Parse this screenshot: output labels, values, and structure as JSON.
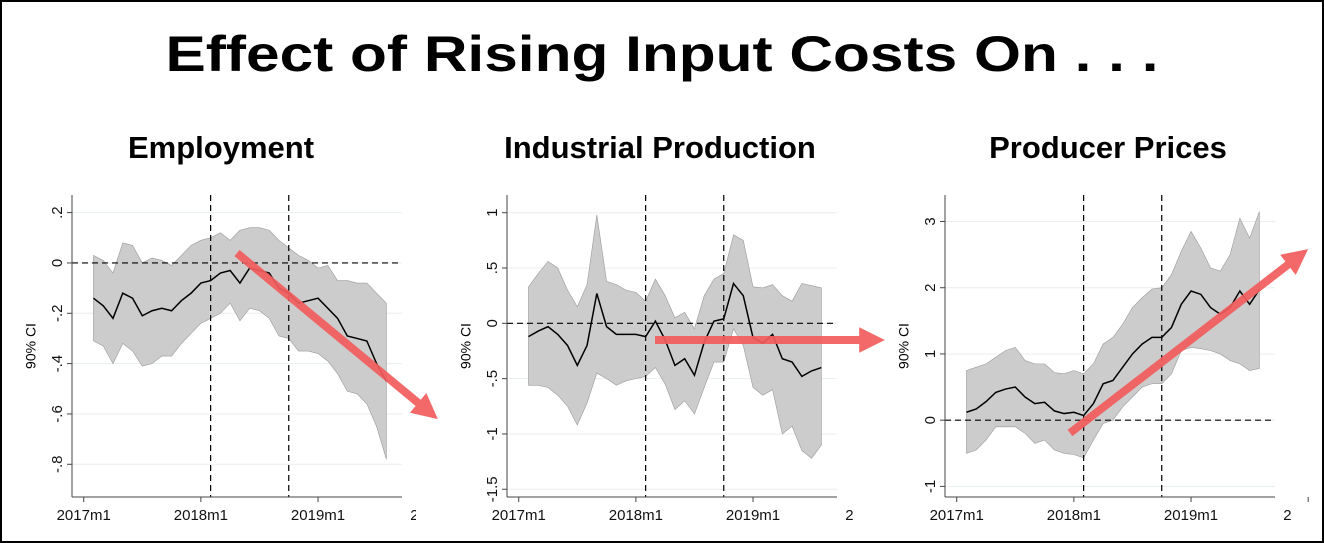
{
  "title": "Effect of Rising Input Costs On . . .",
  "chart_data": [
    {
      "type": "line",
      "title": "Employment",
      "y_label": "90% CI",
      "x": [
        1,
        2,
        3,
        4,
        5,
        6,
        7,
        8,
        9,
        10,
        11,
        12,
        13,
        14,
        15,
        16,
        17,
        18,
        19,
        20,
        21,
        22,
        23,
        24,
        25,
        26,
        27,
        28,
        29,
        30,
        31
      ],
      "values": [
        -0.14,
        -0.17,
        -0.22,
        -0.12,
        -0.14,
        -0.21,
        -0.19,
        -0.18,
        -0.19,
        -0.15,
        -0.12,
        -0.08,
        -0.07,
        -0.04,
        -0.03,
        -0.08,
        -0.02,
        -0.03,
        -0.04,
        -0.1,
        -0.12,
        -0.16,
        -0.15,
        -0.14,
        -0.18,
        -0.22,
        -0.29,
        -0.3,
        -0.31,
        -0.4,
        -0.47
      ],
      "upper": [
        0.03,
        0.01,
        -0.04,
        0.08,
        0.07,
        0.0,
        0.02,
        0.01,
        -0.01,
        0.03,
        0.07,
        0.09,
        0.1,
        0.12,
        0.09,
        0.13,
        0.14,
        0.14,
        0.13,
        0.09,
        0.06,
        0.03,
        0.01,
        -0.02,
        -0.01,
        -0.07,
        -0.07,
        -0.08,
        -0.08,
        -0.12,
        -0.16
      ],
      "lower": [
        -0.31,
        -0.33,
        -0.4,
        -0.32,
        -0.35,
        -0.41,
        -0.4,
        -0.37,
        -0.37,
        -0.32,
        -0.28,
        -0.24,
        -0.22,
        -0.2,
        -0.16,
        -0.23,
        -0.18,
        -0.19,
        -0.22,
        -0.29,
        -0.3,
        -0.35,
        -0.35,
        -0.36,
        -0.39,
        -0.44,
        -0.51,
        -0.52,
        -0.56,
        -0.65,
        -0.78
      ],
      "xlim": [
        -1.2,
        32.6
      ],
      "xticks": [
        {
          "value": 0,
          "label": "2017m1"
        },
        {
          "value": 12,
          "label": "2018m1"
        },
        {
          "value": 24,
          "label": "2019m1"
        },
        {
          "value": 36,
          "label": "2"
        }
      ],
      "ylim": [
        -0.93,
        0.27
      ],
      "yticks": [
        {
          "value": 0.2,
          "label": ".2"
        },
        0,
        {
          "value": -0.2,
          "label": "-.2"
        },
        {
          "value": -0.4,
          "label": "-.4"
        },
        {
          "value": -0.6,
          "label": "-.6"
        },
        {
          "value": -0.8,
          "label": "-.8"
        }
      ],
      "hline": 0,
      "vlines": [
        13,
        21
      ],
      "grid": true,
      "color": "#000000",
      "band_color": "#cccccc"
    },
    {
      "type": "line",
      "title": "Industrial Production",
      "y_label": "90% CI",
      "x": [
        1,
        2,
        3,
        4,
        5,
        6,
        7,
        8,
        9,
        10,
        11,
        12,
        13,
        14,
        15,
        16,
        17,
        18,
        19,
        20,
        21,
        22,
        23,
        24,
        25,
        26,
        27,
        28,
        29,
        30,
        31
      ],
      "values": [
        -0.12,
        -0.07,
        -0.03,
        -0.1,
        -0.2,
        -0.38,
        -0.2,
        0.27,
        -0.03,
        -0.1,
        -0.1,
        -0.1,
        -0.12,
        0.02,
        -0.15,
        -0.38,
        -0.32,
        -0.47,
        -0.17,
        0.02,
        0.04,
        0.36,
        0.25,
        -0.13,
        -0.18,
        -0.1,
        -0.32,
        -0.35,
        -0.48,
        -0.43,
        -0.4
      ],
      "upper": [
        0.33,
        0.45,
        0.56,
        0.5,
        0.3,
        0.15,
        0.35,
        0.98,
        0.38,
        0.35,
        0.3,
        0.28,
        0.2,
        0.4,
        0.25,
        0.05,
        0.1,
        -0.05,
        0.25,
        0.4,
        0.45,
        0.8,
        0.75,
        0.33,
        0.32,
        0.35,
        0.25,
        0.2,
        0.36,
        0.34,
        0.32
      ],
      "lower": [
        -0.56,
        -0.56,
        -0.58,
        -0.65,
        -0.75,
        -0.92,
        -0.72,
        -0.45,
        -0.5,
        -0.56,
        -0.52,
        -0.5,
        -0.48,
        -0.4,
        -0.55,
        -0.78,
        -0.7,
        -0.82,
        -0.58,
        -0.35,
        -0.35,
        -0.05,
        -0.2,
        -0.58,
        -0.65,
        -0.6,
        -1.0,
        -0.93,
        -1.15,
        -1.22,
        -1.1
      ],
      "xlim": [
        -1.2,
        32.6
      ],
      "xticks": [
        {
          "value": 0,
          "label": "2017m1"
        },
        {
          "value": 12,
          "label": "2018m1"
        },
        {
          "value": 24,
          "label": "2019m1"
        },
        {
          "value": 36,
          "label": "2"
        }
      ],
      "ylim": [
        -1.57,
        1.16
      ],
      "yticks": [
        1,
        {
          "value": 0.5,
          "label": ".5"
        },
        0,
        {
          "value": -0.5,
          "label": "-.5"
        },
        -1,
        -1.5
      ],
      "hline": 0,
      "vlines": [
        13,
        21
      ],
      "grid": true,
      "color": "#000000",
      "band_color": "#cccccc"
    },
    {
      "type": "line",
      "title": "Producer Prices",
      "y_label": "90% CI",
      "x": [
        1,
        2,
        3,
        4,
        5,
        6,
        7,
        8,
        9,
        10,
        11,
        12,
        13,
        14,
        15,
        16,
        17,
        18,
        19,
        20,
        21,
        22,
        23,
        24,
        25,
        26,
        27,
        28,
        29,
        30,
        31
      ],
      "values": [
        0.12,
        0.17,
        0.28,
        0.42,
        0.47,
        0.5,
        0.35,
        0.25,
        0.27,
        0.14,
        0.1,
        0.12,
        0.07,
        0.25,
        0.55,
        0.6,
        0.8,
        1.0,
        1.15,
        1.25,
        1.25,
        1.4,
        1.75,
        1.95,
        1.9,
        1.7,
        1.6,
        1.7,
        1.95,
        1.75,
        1.97
      ],
      "upper": [
        0.75,
        0.8,
        0.85,
        0.95,
        1.05,
        1.1,
        0.9,
        0.85,
        0.85,
        0.72,
        0.7,
        0.75,
        0.7,
        0.85,
        1.15,
        1.25,
        1.45,
        1.7,
        1.85,
        1.98,
        2.0,
        2.2,
        2.55,
        2.85,
        2.6,
        2.3,
        2.25,
        2.5,
        3.05,
        2.75,
        3.15
      ],
      "lower": [
        -0.5,
        -0.45,
        -0.3,
        -0.1,
        -0.1,
        -0.1,
        -0.2,
        -0.35,
        -0.3,
        -0.45,
        -0.5,
        -0.52,
        -0.57,
        -0.3,
        -0.05,
        0.0,
        0.2,
        0.35,
        0.5,
        0.55,
        0.55,
        0.7,
        1.05,
        1.1,
        1.08,
        1.05,
        1.0,
        0.9,
        0.85,
        0.75,
        0.78
      ],
      "xlim": [
        -1.2,
        32.6
      ],
      "xticks": [
        {
          "value": 0,
          "label": "2017m1"
        },
        {
          "value": 12,
          "label": "2018m1"
        },
        {
          "value": 24,
          "label": "2019m1"
        },
        {
          "value": 36,
          "label": "2"
        }
      ],
      "ylim": [
        -1.16,
        3.4
      ],
      "yticks": [
        3,
        2,
        1,
        0,
        -1
      ],
      "hline": 0,
      "vlines": [
        13,
        21
      ],
      "grid": true,
      "color": "#000000",
      "band_color": "#cccccc"
    }
  ]
}
